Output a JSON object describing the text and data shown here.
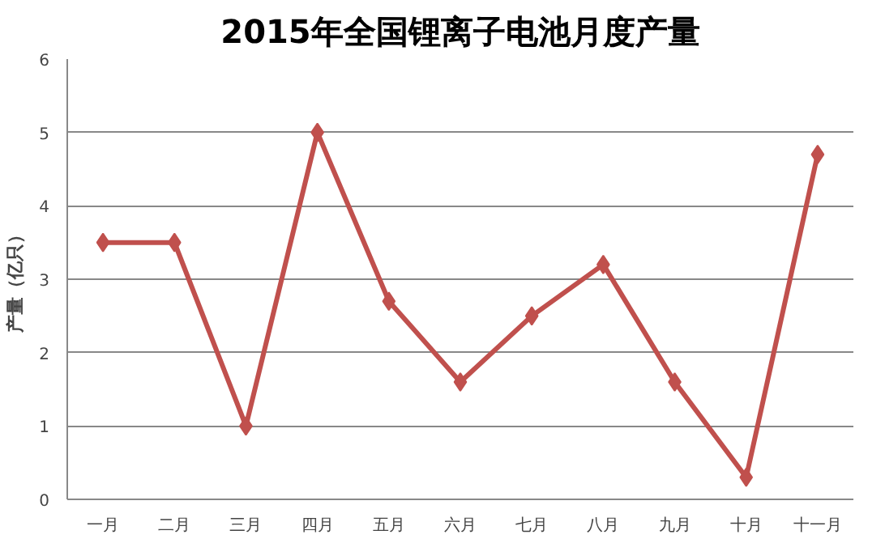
{
  "chart_data": {
    "type": "line",
    "title": "2015年全国锂离子电池月度产量",
    "ylabel": "产量（亿只）",
    "categories": [
      "一月",
      "二月",
      "三月",
      "四月",
      "五月",
      "六月",
      "七月",
      "八月",
      "九月",
      "十月",
      "十一月"
    ],
    "series": [
      {
        "color": "#c0504d",
        "values": [
          3.5,
          3.5,
          1.0,
          5.0,
          2.7,
          1.6,
          2.5,
          3.2,
          1.6,
          0.3,
          4.7
        ]
      }
    ],
    "ylim": [
      0,
      6
    ],
    "yticks": [
      0,
      1,
      2,
      3,
      4,
      5,
      6
    ],
    "grid": "y",
    "marker": "diamond"
  }
}
